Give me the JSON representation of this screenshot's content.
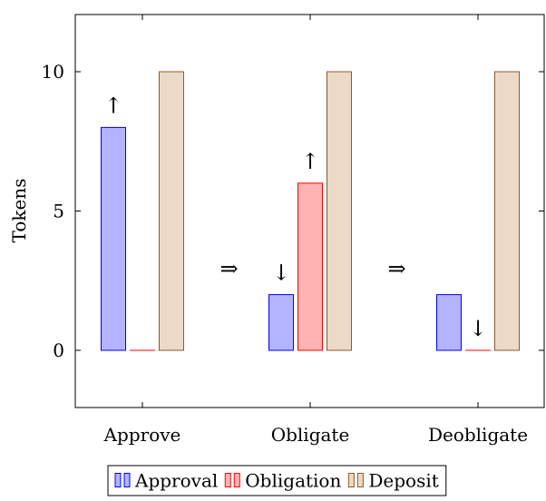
{
  "chart_data": {
    "type": "bar",
    "categories": [
      "Approve",
      "Obligate",
      "Deobligate"
    ],
    "ylabel": "Tokens",
    "xlabel": "",
    "title": "",
    "ylim": [
      -2,
      12
    ],
    "yticks": [
      0,
      5,
      10
    ],
    "grid": false,
    "legend_position": "bottom",
    "series": [
      {
        "name": "Approval",
        "values": [
          8,
          2,
          2
        ],
        "fill": "#b3b3ff",
        "stroke": "#0000ff"
      },
      {
        "name": "Obligation",
        "values": [
          0,
          6,
          0
        ],
        "fill": "#ffb3b3",
        "stroke": "#ff0000"
      },
      {
        "name": "Deposit",
        "values": [
          10,
          10,
          10
        ],
        "fill": "#ecdac8",
        "stroke": "#8b5a2b"
      }
    ],
    "annotations": [
      {
        "text": "↑",
        "category": "Approve",
        "series": "Approval"
      },
      {
        "text": "↓",
        "category": "Obligate",
        "series": "Approval"
      },
      {
        "text": "↑",
        "category": "Obligate",
        "series": "Obligation"
      },
      {
        "text": "↓",
        "category": "Deobligate",
        "series": "Obligation"
      }
    ],
    "transitions": [
      {
        "text": "⇒",
        "between": [
          "Approve",
          "Obligate"
        ]
      },
      {
        "text": "⇒",
        "between": [
          "Obligate",
          "Deobligate"
        ]
      }
    ]
  }
}
